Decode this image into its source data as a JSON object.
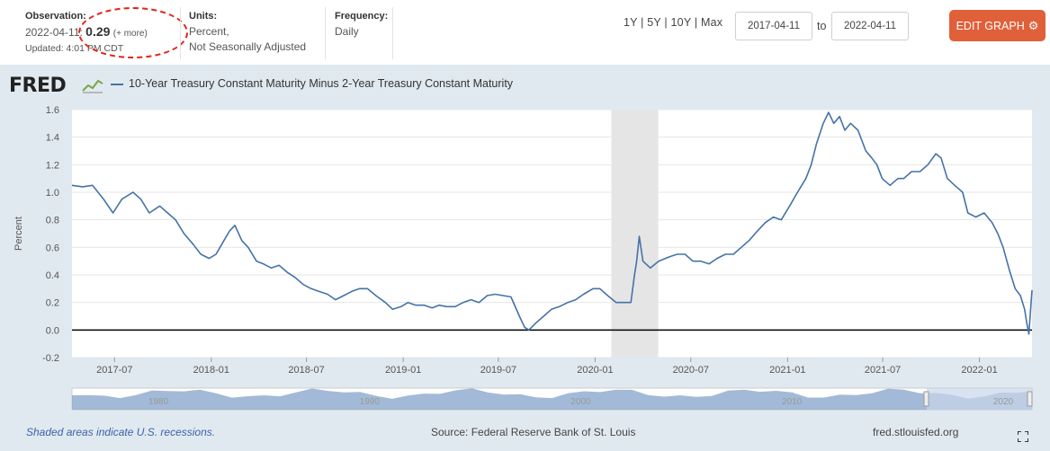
{
  "observation": {
    "label": "Observation:",
    "date": "2022-04-11:",
    "value": "0.29",
    "more": "(+ more)",
    "updated": "Updated: 4:01 PM CDT"
  },
  "units": {
    "label": "Units:",
    "line1": "Percent,",
    "line2": "Not Seasonally Adjusted"
  },
  "frequency": {
    "label": "Frequency:",
    "value": "Daily"
  },
  "ranges": [
    "1Y",
    "5Y",
    "10Y",
    "Max"
  ],
  "date_from": "2017-04-11",
  "date_to": "2022-04-11",
  "to_label": "to",
  "edit_button": "EDIT GRAPH",
  "logo": "FRED",
  "footer": {
    "recession_note": "Shaded areas indicate U.S. recessions.",
    "source": "Source: Federal Reserve Bank of St. Louis",
    "site": "fred.stlouisfed.org"
  },
  "colors": {
    "series": "#4572a7",
    "accent": "#e0603a",
    "recession": "#e5e5e5",
    "annotation": "#e2231a"
  },
  "chart_data": {
    "type": "line",
    "title": "",
    "xlabel": "",
    "ylabel": "Percent",
    "ylim": [
      -0.2,
      1.6
    ],
    "yticks": [
      "1.6",
      "1.4",
      "1.2",
      "1.0",
      "0.8",
      "0.6",
      "0.4",
      "0.2",
      "0.0",
      "-0.2"
    ],
    "xticks": [
      "2017-07",
      "2018-01",
      "2018-07",
      "2019-01",
      "2019-07",
      "2020-01",
      "2020-07",
      "2021-01",
      "2021-07",
      "2022-01"
    ],
    "xlim": [
      "2017-04-11",
      "2022-04-11"
    ],
    "grid": "horizontal",
    "recession": [
      "2020-02-01",
      "2020-04-30"
    ],
    "navigator_labels": [
      "1980",
      "1990",
      "2000",
      "2010",
      "2020"
    ],
    "series": [
      {
        "name": "10-Year Treasury Constant Maturity Minus 2-Year Treasury Constant Maturity",
        "x": [
          "2017-04-11",
          "2017-05-01",
          "2017-05-20",
          "2017-06-10",
          "2017-06-28",
          "2017-07-15",
          "2017-08-05",
          "2017-08-20",
          "2017-09-05",
          "2017-09-25",
          "2017-10-10",
          "2017-10-25",
          "2017-11-10",
          "2017-11-28",
          "2017-12-12",
          "2017-12-28",
          "2018-01-10",
          "2018-01-25",
          "2018-02-05",
          "2018-02-15",
          "2018-02-28",
          "2018-03-12",
          "2018-03-28",
          "2018-04-10",
          "2018-04-25",
          "2018-05-10",
          "2018-05-25",
          "2018-06-10",
          "2018-06-25",
          "2018-07-10",
          "2018-07-25",
          "2018-08-10",
          "2018-08-25",
          "2018-09-10",
          "2018-09-25",
          "2018-10-10",
          "2018-10-25",
          "2018-11-10",
          "2018-11-28",
          "2018-12-12",
          "2018-12-28",
          "2019-01-10",
          "2019-01-25",
          "2019-02-10",
          "2019-02-25",
          "2019-03-10",
          "2019-03-25",
          "2019-04-10",
          "2019-04-25",
          "2019-05-10",
          "2019-05-25",
          "2019-06-10",
          "2019-06-25",
          "2019-07-10",
          "2019-07-25",
          "2019-08-10",
          "2019-08-20",
          "2019-08-28",
          "2019-09-10",
          "2019-09-25",
          "2019-10-10",
          "2019-10-25",
          "2019-11-10",
          "2019-11-25",
          "2019-12-10",
          "2019-12-28",
          "2020-01-10",
          "2020-01-25",
          "2020-02-10",
          "2020-02-20",
          "2020-03-01",
          "2020-03-09",
          "2020-03-16",
          "2020-03-20",
          "2020-03-25",
          "2020-04-01",
          "2020-04-15",
          "2020-05-01",
          "2020-05-20",
          "2020-06-05",
          "2020-06-20",
          "2020-07-05",
          "2020-07-20",
          "2020-08-05",
          "2020-08-20",
          "2020-09-05",
          "2020-09-20",
          "2020-10-05",
          "2020-10-20",
          "2020-11-05",
          "2020-11-20",
          "2020-12-05",
          "2020-12-20",
          "2021-01-05",
          "2021-01-20",
          "2021-02-05",
          "2021-02-15",
          "2021-02-25",
          "2021-03-10",
          "2021-03-20",
          "2021-03-30",
          "2021-04-10",
          "2021-04-20",
          "2021-05-01",
          "2021-05-15",
          "2021-05-30",
          "2021-06-10",
          "2021-06-20",
          "2021-06-30",
          "2021-07-15",
          "2021-07-30",
          "2021-08-10",
          "2021-08-25",
          "2021-09-10",
          "2021-09-25",
          "2021-10-10",
          "2021-10-20",
          "2021-11-01",
          "2021-11-15",
          "2021-11-30",
          "2021-12-10",
          "2021-12-25",
          "2022-01-10",
          "2022-01-25",
          "2022-02-05",
          "2022-02-15",
          "2022-02-28",
          "2022-03-10",
          "2022-03-20",
          "2022-03-28",
          "2022-04-01",
          "2022-04-05",
          "2022-04-11"
        ],
        "values": [
          1.05,
          1.04,
          1.05,
          0.95,
          0.85,
          0.95,
          1.0,
          0.95,
          0.85,
          0.9,
          0.85,
          0.8,
          0.7,
          0.62,
          0.55,
          0.52,
          0.55,
          0.65,
          0.72,
          0.76,
          0.65,
          0.6,
          0.5,
          0.48,
          0.45,
          0.47,
          0.42,
          0.38,
          0.33,
          0.3,
          0.28,
          0.26,
          0.22,
          0.25,
          0.28,
          0.3,
          0.3,
          0.25,
          0.2,
          0.15,
          0.17,
          0.2,
          0.18,
          0.18,
          0.16,
          0.18,
          0.17,
          0.17,
          0.2,
          0.22,
          0.2,
          0.25,
          0.26,
          0.25,
          0.24,
          0.1,
          0.02,
          0.0,
          0.05,
          0.1,
          0.15,
          0.17,
          0.2,
          0.22,
          0.26,
          0.3,
          0.3,
          0.25,
          0.2,
          0.2,
          0.2,
          0.2,
          0.4,
          0.5,
          0.68,
          0.5,
          0.45,
          0.5,
          0.53,
          0.55,
          0.55,
          0.5,
          0.5,
          0.48,
          0.52,
          0.55,
          0.55,
          0.6,
          0.65,
          0.72,
          0.78,
          0.82,
          0.8,
          0.9,
          1.0,
          1.1,
          1.2,
          1.35,
          1.5,
          1.58,
          1.5,
          1.55,
          1.45,
          1.5,
          1.45,
          1.3,
          1.25,
          1.2,
          1.1,
          1.05,
          1.1,
          1.1,
          1.15,
          1.15,
          1.2,
          1.28,
          1.25,
          1.1,
          1.05,
          1.0,
          0.85,
          0.82,
          0.85,
          0.78,
          0.7,
          0.6,
          0.42,
          0.3,
          0.25,
          0.15,
          0.05,
          -0.03,
          0.29
        ]
      }
    ]
  }
}
